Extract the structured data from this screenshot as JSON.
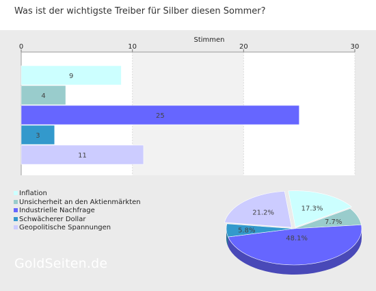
{
  "title": "Was ist der wichtigste Treiber für Silber diesen Sommer?",
  "watermark": "GoldSeiten.de",
  "chart_data": [
    {
      "type": "bar",
      "orientation": "horizontal",
      "xlabel": "Stimmen",
      "xlim": [
        0,
        30
      ],
      "xticks": [
        0,
        10,
        20,
        30
      ],
      "grid": true,
      "categories": [
        "Inflation",
        "Unsicherheit an den Aktienmärkten",
        "Industrielle Nachfrage",
        "Schwächerer Dollar",
        "Geopolitische Spannungen"
      ],
      "values": [
        9,
        4,
        25,
        3,
        11
      ],
      "colors": [
        "#ccffff",
        "#99cccc",
        "#6666ff",
        "#3399cc",
        "#ccccff"
      ]
    },
    {
      "type": "pie",
      "categories": [
        "Inflation",
        "Unsicherheit an den Aktienmärkten",
        "Industrielle Nachfrage",
        "Schwächerer Dollar",
        "Geopolitische Spannungen"
      ],
      "values": [
        17.3,
        7.7,
        48.1,
        5.8,
        21.2
      ],
      "labels": [
        "17.3%",
        "7.7%",
        "48.1%",
        "5.8%",
        "21.2%"
      ],
      "colors": [
        "#ccffff",
        "#99cccc",
        "#6666ff",
        "#3399cc",
        "#ccccff"
      ],
      "legend": "bottom-left"
    }
  ]
}
